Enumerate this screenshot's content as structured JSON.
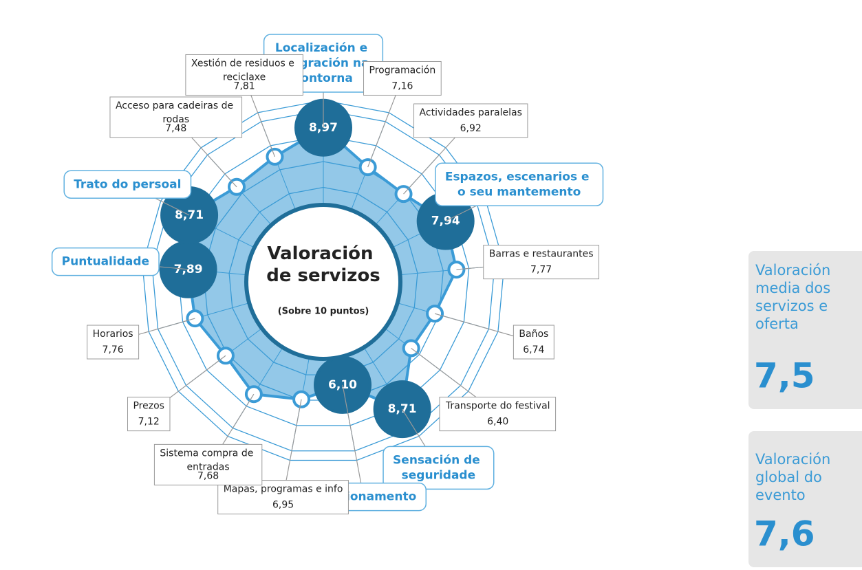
{
  "chart_data": {
    "type": "radar",
    "title": "Valoración de servizos",
    "subtitle": "(Sobre 10 puntos)",
    "categories": [
      "Localización e integración na contorna",
      "Programación",
      "Actividades paralelas",
      "Espazos, escenarios e o seu mantemento",
      "Barras e restaurantes",
      "Baños",
      "Transporte do festival",
      "Sensación de seguridade",
      "Estacionamento",
      "Mapas, programas e info",
      "Sistema compra de entradas",
      "Prezos",
      "Horarios",
      "Puntualidade",
      "Trato do persoal",
      "Acceso para cadeiras de rodas",
      "Xestión de residuos e reciclaxe"
    ],
    "values": [
      8.97,
      7.16,
      6.92,
      7.94,
      7.77,
      6.74,
      6.4,
      8.71,
      6.1,
      6.95,
      7.68,
      7.12,
      7.76,
      7.89,
      8.71,
      7.48,
      7.81
    ],
    "value_labels": [
      "8,97",
      "7,16",
      "6,92",
      "7,94",
      "7,77",
      "6,74",
      "6,40",
      "8,71",
      "6,10",
      "6,95",
      "7,68",
      "7,12",
      "7,76",
      "7,89",
      "8,71",
      "7,48",
      "7,81"
    ],
    "featured": [
      true,
      false,
      false,
      true,
      false,
      false,
      false,
      true,
      true,
      false,
      false,
      false,
      false,
      true,
      true,
      false,
      false
    ],
    "rlim": [
      0,
      10
    ],
    "color": "#3b9bd6"
  },
  "summary": [
    {
      "label": "Valoración media dos servizos e oferta",
      "value": "7,5"
    },
    {
      "label": "Valoración global do evento",
      "value": "7,6"
    }
  ]
}
